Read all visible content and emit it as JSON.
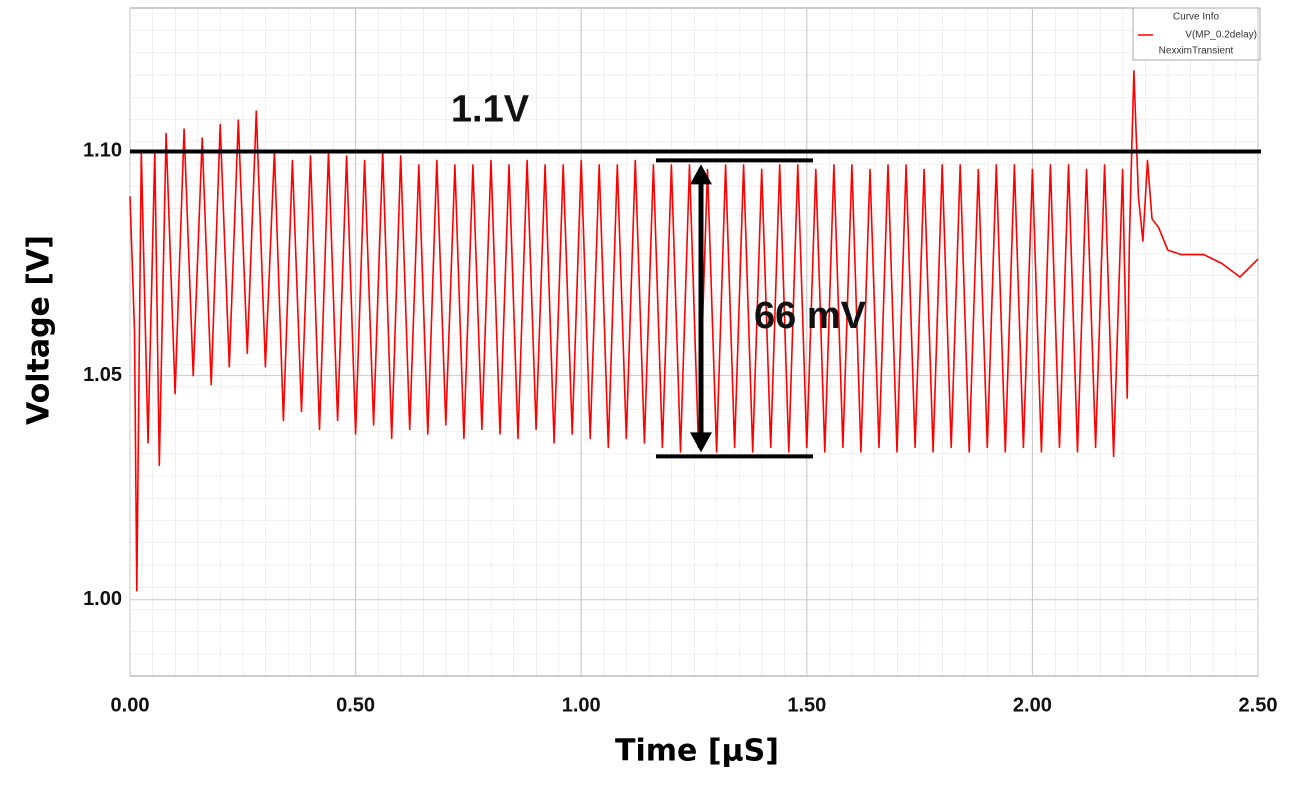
{
  "chart_data": {
    "type": "line",
    "x_label": "Time [µS]",
    "y_label": "Voltage [V]",
    "xlim": [
      0,
      2.5
    ],
    "ylim": [
      0.983,
      1.132
    ],
    "xticks": [
      {
        "value": 0,
        "label": "0.00"
      },
      {
        "value": 0.5,
        "label": "0.50"
      },
      {
        "value": 1,
        "label": "1.00"
      },
      {
        "value": 1.5,
        "label": "1.50"
      },
      {
        "value": 2,
        "label": "2.00"
      },
      {
        "value": 2.5,
        "label": "2.50"
      }
    ],
    "yticks": [
      {
        "value": 1,
        "label": "1.00"
      },
      {
        "value": 1.05,
        "label": "1.05"
      },
      {
        "value": 1.1,
        "label": "1.10"
      }
    ],
    "grid": true,
    "legend_title": "Curve Info",
    "legend_subtitle": "NexximTransient",
    "legend_position": "upper right",
    "reference_line": {
      "value": 1.1,
      "label": "1.1V",
      "color": "#000000"
    },
    "span": {
      "label": "66 mV",
      "from": 1.032,
      "to": 1.098,
      "color": "#000000"
    },
    "series": [
      {
        "name": "V(MP_0.2delay)",
        "color": "#ff0000",
        "x": [
          0,
          0.01,
          0.015,
          0.025,
          0.04,
          0.055,
          0.065,
          0.08,
          0.1,
          0.12,
          0.14,
          0.16,
          0.18,
          0.2,
          0.22,
          0.24,
          0.26,
          0.28,
          0.3,
          0.32,
          0.34,
          0.36,
          0.38,
          0.4,
          0.42,
          0.44,
          0.46,
          0.48,
          0.5,
          0.52,
          0.54,
          0.56,
          0.58,
          0.6,
          0.62,
          0.64,
          0.66,
          0.68,
          0.7,
          0.72,
          0.74,
          0.76,
          0.78,
          0.8,
          0.82,
          0.84,
          0.86,
          0.88,
          0.9,
          0.92,
          0.94,
          0.96,
          0.98,
          1,
          1.02,
          1.04,
          1.06,
          1.08,
          1.1,
          1.12,
          1.14,
          1.16,
          1.18,
          1.2,
          1.22,
          1.24,
          1.26,
          1.28,
          1.3,
          1.32,
          1.34,
          1.36,
          1.38,
          1.4,
          1.42,
          1.44,
          1.46,
          1.48,
          1.5,
          1.52,
          1.54,
          1.56,
          1.58,
          1.6,
          1.62,
          1.64,
          1.66,
          1.68,
          1.7,
          1.72,
          1.74,
          1.76,
          1.78,
          1.8,
          1.82,
          1.84,
          1.86,
          1.88,
          1.9,
          1.92,
          1.94,
          1.96,
          1.98,
          2,
          2.02,
          2.04,
          2.06,
          2.08,
          2.1,
          2.12,
          2.14,
          2.16,
          2.18,
          2.2,
          2.21,
          2.215,
          2.22,
          2.225,
          2.235,
          2.245,
          2.255,
          2.265,
          2.28,
          2.3,
          2.33,
          2.38,
          2.42,
          2.46,
          2.5
        ],
        "values": [
          1.09,
          1.06,
          1.002,
          1.1,
          1.035,
          1.1,
          1.03,
          1.104,
          1.046,
          1.105,
          1.05,
          1.103,
          1.048,
          1.106,
          1.052,
          1.107,
          1.055,
          1.109,
          1.052,
          1.1,
          1.04,
          1.098,
          1.042,
          1.099,
          1.038,
          1.1,
          1.04,
          1.099,
          1.037,
          1.098,
          1.039,
          1.1,
          1.036,
          1.099,
          1.038,
          1.097,
          1.037,
          1.098,
          1.039,
          1.097,
          1.036,
          1.097,
          1.038,
          1.098,
          1.037,
          1.097,
          1.036,
          1.098,
          1.038,
          1.097,
          1.035,
          1.097,
          1.037,
          1.098,
          1.036,
          1.097,
          1.034,
          1.097,
          1.036,
          1.098,
          1.035,
          1.097,
          1.034,
          1.097,
          1.033,
          1.097,
          1.034,
          1.096,
          1.033,
          1.097,
          1.034,
          1.097,
          1.033,
          1.096,
          1.034,
          1.097,
          1.033,
          1.097,
          1.034,
          1.096,
          1.033,
          1.097,
          1.034,
          1.097,
          1.033,
          1.096,
          1.034,
          1.097,
          1.033,
          1.097,
          1.034,
          1.096,
          1.033,
          1.097,
          1.034,
          1.097,
          1.033,
          1.096,
          1.034,
          1.097,
          1.033,
          1.097,
          1.034,
          1.096,
          1.033,
          1.097,
          1.034,
          1.097,
          1.033,
          1.096,
          1.034,
          1.097,
          1.032,
          1.096,
          1.045,
          1.08,
          1.1,
          1.118,
          1.09,
          1.08,
          1.098,
          1.085,
          1.083,
          1.078,
          1.077,
          1.077,
          1.075,
          1.072,
          1.076
        ]
      }
    ]
  }
}
